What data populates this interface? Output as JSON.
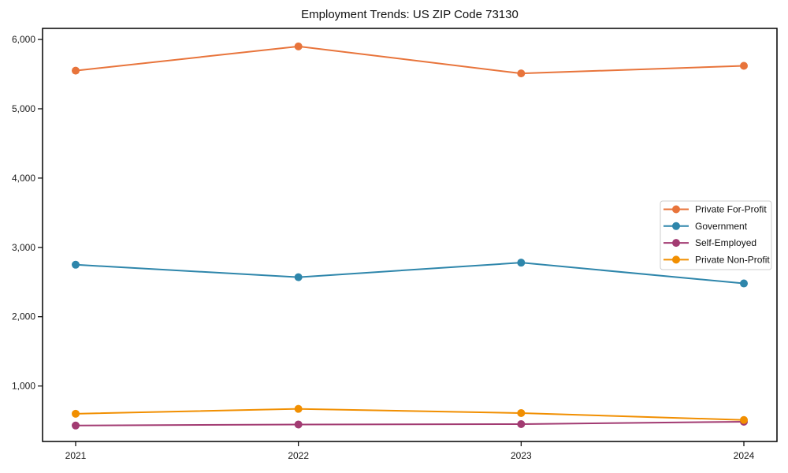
{
  "figure": {
    "background": "#ffffff"
  },
  "chart_data": {
    "type": "line",
    "title": "Employment Trends: US ZIP Code 73130",
    "xlabel": "",
    "ylabel": "",
    "categories": [
      "2021",
      "2022",
      "2023",
      "2024"
    ],
    "series": [
      {
        "name": "Private For-Profit",
        "color": "#E8743B",
        "values": [
          5550,
          5900,
          5510,
          5620
        ]
      },
      {
        "name": "Government",
        "color": "#2E86AB",
        "values": [
          2750,
          2570,
          2780,
          2480
        ]
      },
      {
        "name": "Self-Employed",
        "color": "#A23B72",
        "values": [
          430,
          445,
          450,
          485
        ]
      },
      {
        "name": "Private Non-Profit",
        "color": "#F18F01",
        "values": [
          600,
          670,
          610,
          510
        ]
      }
    ],
    "yticks": [
      1000,
      2000,
      3000,
      4000,
      5000,
      6000
    ],
    "ytick_labels": [
      "1,000",
      "2,000",
      "3,000",
      "4,000",
      "5,000",
      "6,000"
    ],
    "ylim": [
      200,
      6160
    ],
    "grid": false,
    "legend_position": "center right",
    "legend_entries": [
      "Private For-Profit",
      "Government",
      "Self-Employed",
      "Private Non-Profit"
    ],
    "marker": "circle",
    "axis_color": "#000000",
    "text_color": "#1a1a1a",
    "legend_border_color": "#cccccc"
  }
}
